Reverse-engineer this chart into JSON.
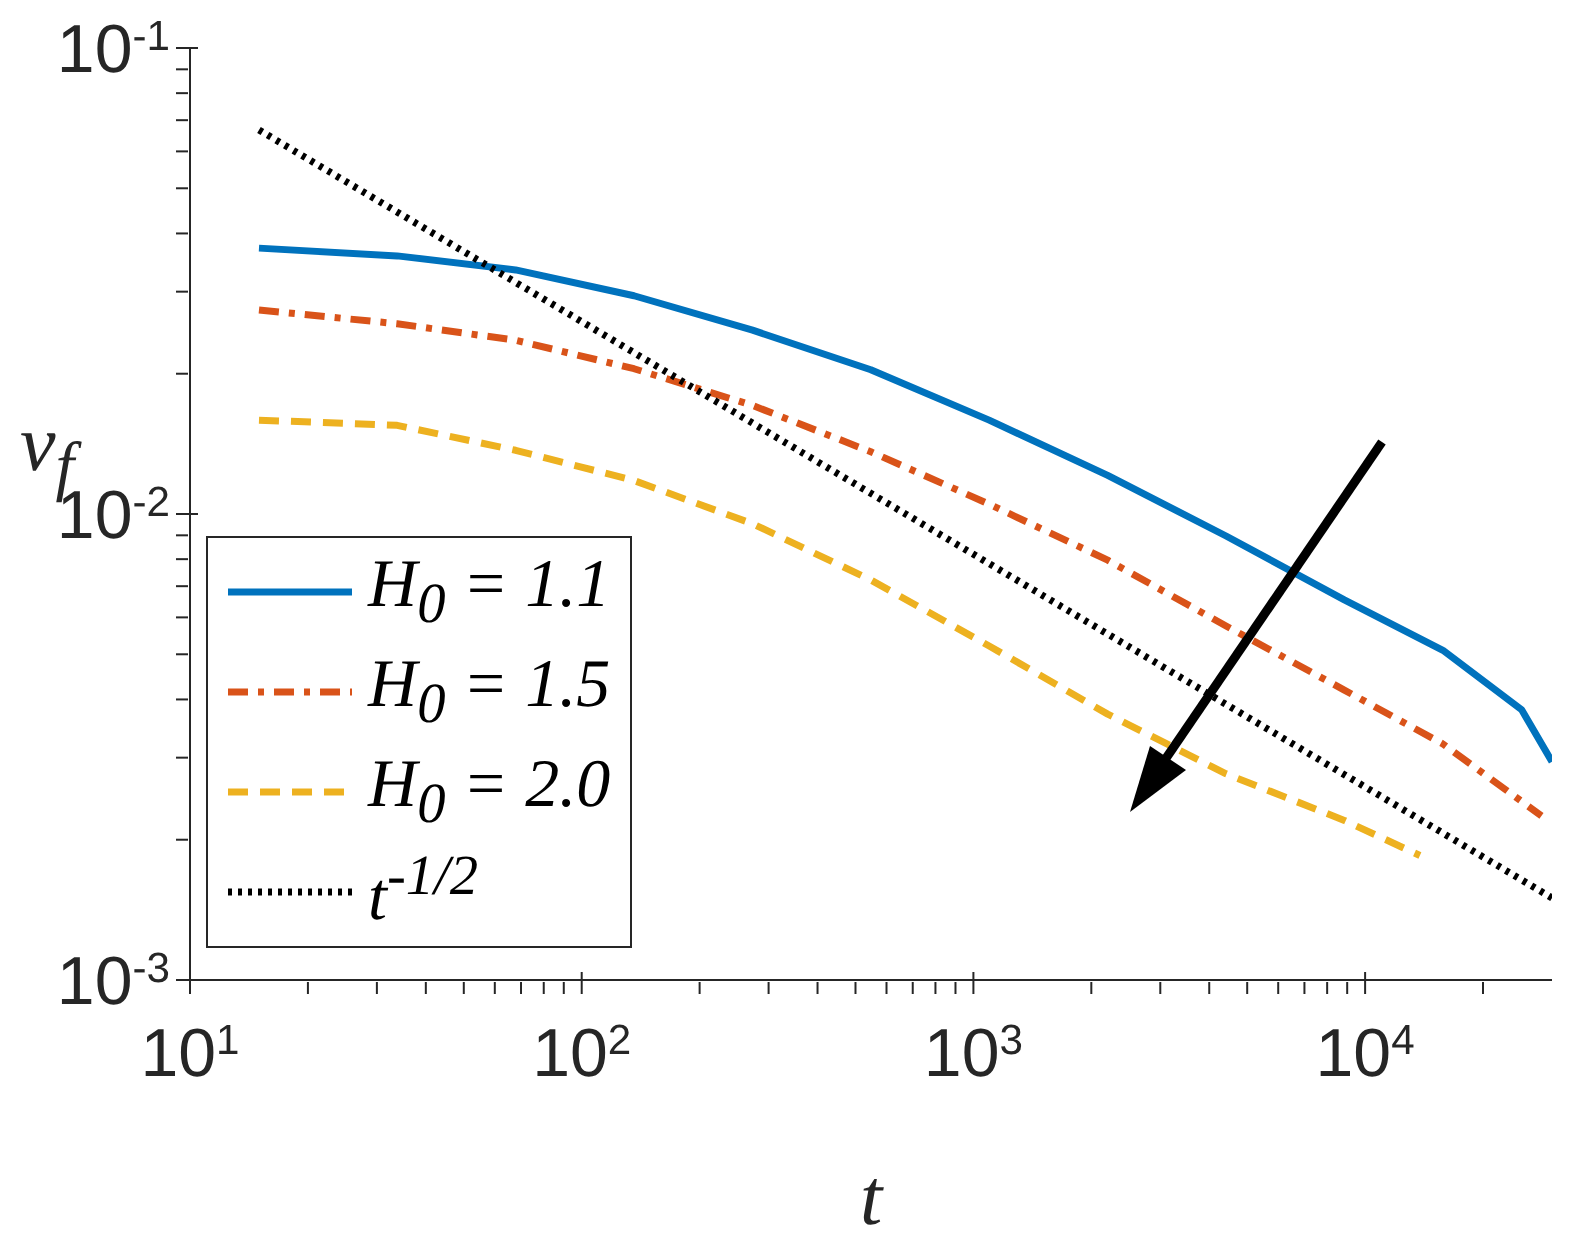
{
  "chart_data": {
    "type": "line",
    "xlabel": "t",
    "ylabel": "v$_{f}$",
    "log": "xy",
    "grid": false,
    "legend": "bottom left",
    "xlim": [
      10,
      30000
    ],
    "ylim": [
      0.001,
      0.1
    ],
    "xticks": [
      {
        "value": 10,
        "label": "10$^{1}$"
      },
      {
        "value": 20,
        "label": null
      },
      {
        "value": 30,
        "label": null
      },
      {
        "value": 40,
        "label": null
      },
      {
        "value": 50,
        "label": null
      },
      {
        "value": 60,
        "label": null
      },
      {
        "value": 70,
        "label": null
      },
      {
        "value": 80,
        "label": null
      },
      {
        "value": 90,
        "label": null
      },
      {
        "value": 100,
        "label": "10$^{2}$"
      },
      {
        "value": 200,
        "label": null
      },
      {
        "value": 300,
        "label": null
      },
      {
        "value": 400,
        "label": null
      },
      {
        "value": 500,
        "label": null
      },
      {
        "value": 600,
        "label": null
      },
      {
        "value": 700,
        "label": null
      },
      {
        "value": 800,
        "label": null
      },
      {
        "value": 900,
        "label": null
      },
      {
        "value": 1000,
        "label": "10$^{3}$"
      },
      {
        "value": 2000,
        "label": null
      },
      {
        "value": 3000,
        "label": null
      },
      {
        "value": 4000,
        "label": null
      },
      {
        "value": 5000,
        "label": null
      },
      {
        "value": 6000,
        "label": null
      },
      {
        "value": 7000,
        "label": null
      },
      {
        "value": 8000,
        "label": null
      },
      {
        "value": 9000,
        "label": null
      },
      {
        "value": 10000,
        "label": "10$^{4}$"
      },
      {
        "value": 20000,
        "label": null
      }
    ],
    "yticks": [
      {
        "value": 0.001,
        "label": "10$^{-3}$"
      },
      {
        "value": 0.002,
        "label": null
      },
      {
        "value": 0.003,
        "label": null
      },
      {
        "value": 0.004,
        "label": null
      },
      {
        "value": 0.005,
        "label": null
      },
      {
        "value": 0.006,
        "label": null
      },
      {
        "value": 0.007,
        "label": null
      },
      {
        "value": 0.008,
        "label": null
      },
      {
        "value": 0.009,
        "label": null
      },
      {
        "value": 0.01,
        "label": "10$^{-2}$"
      },
      {
        "value": 0.02,
        "label": null
      },
      {
        "value": 0.03,
        "label": null
      },
      {
        "value": 0.04,
        "label": null
      },
      {
        "value": 0.05,
        "label": null
      },
      {
        "value": 0.06,
        "label": null
      },
      {
        "value": 0.07,
        "label": null
      },
      {
        "value": 0.08,
        "label": null
      },
      {
        "value": 0.09,
        "label": null
      },
      {
        "value": 0.1,
        "label": "10$^{-1}$"
      }
    ],
    "series": [
      {
        "name": "H$_{0}$ = 1.1",
        "color": "#0072bd",
        "line_style": "solid",
        "x": [
          15,
          33.8,
          67.8,
          136,
          273,
          547,
          1097,
          2202,
          4416,
          8850,
          15800,
          25100,
          30000
        ],
        "values": [
          0.0372,
          0.0358,
          0.0334,
          0.0294,
          0.0248,
          0.0204,
          0.0159,
          0.0121,
          0.00897,
          0.00654,
          0.0051,
          0.0038,
          0.00294
        ]
      },
      {
        "name": "H$_{0}$ = 1.5",
        "color": "#d95319",
        "line_style": "dashdot",
        "x": [
          15,
          33.8,
          67.8,
          136,
          273,
          547,
          1097,
          2202,
          4416,
          8850,
          15800,
          28200
        ],
        "values": [
          0.0274,
          0.0256,
          0.0236,
          0.0205,
          0.0171,
          0.0136,
          0.0105,
          0.00796,
          0.00575,
          0.00419,
          0.00321,
          0.00225
        ]
      },
      {
        "name": "H$_{0}$ = 2.0",
        "color": "#edb120",
        "line_style": "dashed",
        "x": [
          15,
          33.8,
          67.8,
          136,
          273,
          547,
          1097,
          2202,
          4416,
          8850,
          13800
        ],
        "values": [
          0.0159,
          0.0155,
          0.0137,
          0.0118,
          0.00953,
          0.00722,
          0.00521,
          0.00372,
          0.00277,
          0.0022,
          0.00185
        ]
      },
      {
        "name": "t$^{-1/2}$",
        "color": "#000000",
        "line_style": "dotted",
        "x": [
          15,
          30000
        ],
        "values": [
          0.0667,
          0.0015
        ]
      }
    ]
  }
}
